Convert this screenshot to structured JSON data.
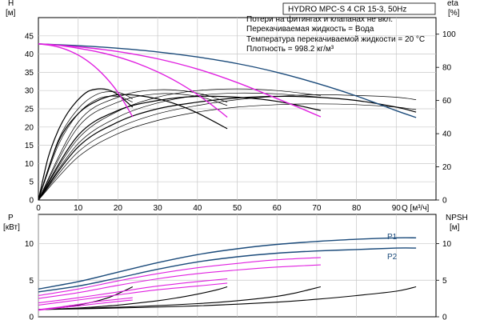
{
  "chart_data": [
    {
      "type": "line",
      "panel": "head-efficiency",
      "title": "HYDRO MPC-S 4 CR 15-3, 50Hz",
      "notes": [
        "Потери на фитингах и клапанах не вкл.",
        "Перекачиваемая жидкость = Вода",
        "Температура перекачиваемой жидкости = 20 °C",
        "Плотность = 998.2 кг/м³"
      ],
      "xlabel": "Q [м³/ч]",
      "xlim": [
        0,
        100
      ],
      "x_ticks": [
        "0",
        "10",
        "20",
        "30",
        "40",
        "50",
        "60",
        "70",
        "80",
        "90"
      ],
      "left_axis": {
        "label_line1": "H",
        "label_line2": "[м]",
        "ylim": [
          0,
          50
        ],
        "ticks": [
          "0",
          "5",
          "10",
          "15",
          "20",
          "25",
          "30",
          "35",
          "40",
          "45"
        ]
      },
      "right_axis": {
        "label_line1": "eta",
        "label_line2": "[%]",
        "ylim": [
          0,
          110
        ],
        "ticks": [
          "0",
          "20",
          "40",
          "60",
          "80",
          "100"
        ]
      },
      "grid": true,
      "head_curves": [
        {
          "color": "#1a4a7a",
          "x": [
            0,
            10,
            20,
            30,
            40,
            50,
            60,
            70,
            80,
            90,
            95
          ],
          "y": [
            42.8,
            42.3,
            41.6,
            40.6,
            39.2,
            37.4,
            35.0,
            32.0,
            28.5,
            24.5,
            22.6
          ]
        },
        {
          "color": "#e020e0",
          "x": [
            0,
            10,
            20,
            30,
            40,
            50,
            60,
            65,
            71
          ],
          "y": [
            42.8,
            42.0,
            40.7,
            38.7,
            35.9,
            32.2,
            27.8,
            25.6,
            22.8
          ]
        },
        {
          "color": "#e020e0",
          "x": [
            0,
            5,
            10,
            15,
            20,
            25,
            30,
            35,
            40,
            45,
            47.5
          ],
          "y": [
            42.8,
            42.4,
            41.6,
            40.6,
            39.2,
            37.4,
            35.1,
            32.3,
            28.9,
            24.9,
            22.7
          ]
        },
        {
          "color": "#e020e0",
          "x": [
            0,
            4,
            8,
            12,
            16,
            20,
            23.7
          ],
          "y": [
            42.8,
            42.2,
            40.8,
            38.4,
            34.7,
            29.5,
            22.8
          ]
        }
      ],
      "efficiency_curves": [
        {
          "color": "#000000",
          "width": 1.2,
          "x": [
            0,
            10,
            20,
            30,
            40,
            50,
            60,
            70,
            80,
            90,
            95
          ],
          "y": [
            0,
            32,
            47,
            55,
            59,
            61.5,
            62.5,
            62,
            60,
            56,
            53
          ]
        },
        {
          "color": "#000000",
          "width": 1.2,
          "x": [
            0,
            10,
            20,
            30,
            40,
            50,
            60,
            71
          ],
          "y": [
            0,
            39,
            54,
            60,
            62.5,
            62,
            59.5,
            54
          ]
        },
        {
          "color": "#000000",
          "width": 1.2,
          "x": [
            0,
            5,
            10,
            15,
            20,
            25,
            30,
            35,
            40,
            47.5
          ],
          "y": [
            0,
            35,
            52,
            60,
            63.5,
            63,
            61,
            57.5,
            52.5,
            43
          ]
        },
        {
          "color": "#000000",
          "width": 1.2,
          "x": [
            0,
            2.5,
            5,
            7.5,
            10,
            12.5,
            15,
            17.5,
            20,
            23.7
          ],
          "y": [
            0,
            26,
            42,
            53,
            60.5,
            65.5,
            67,
            66.5,
            63.5,
            56
          ]
        },
        {
          "color": "#000000",
          "width": 0.7,
          "x": [
            0,
            10,
            20,
            30,
            40,
            50,
            60,
            70,
            80,
            90,
            95
          ],
          "y": [
            0,
            26,
            40,
            48,
            53,
            56,
            57.5,
            58,
            57.5,
            56,
            54.5
          ]
        },
        {
          "color": "#000000",
          "width": 0.7,
          "x": [
            0,
            10,
            20,
            30,
            40,
            50,
            60,
            70,
            80,
            90,
            95
          ],
          "y": [
            0,
            29,
            43.5,
            52,
            57,
            60.5,
            62.5,
            63.5,
            63,
            62,
            60.5
          ]
        },
        {
          "color": "#000000",
          "width": 0.7,
          "x": [
            0,
            10,
            20,
            30,
            40,
            50,
            60,
            71
          ],
          "y": [
            0,
            34,
            50,
            58.5,
            63,
            64.5,
            64,
            62
          ]
        },
        {
          "color": "#000000",
          "width": 0.7,
          "x": [
            0,
            10,
            20,
            30,
            40,
            50,
            60,
            71
          ],
          "y": [
            0,
            37,
            53.5,
            62,
            66,
            67,
            66,
            63
          ]
        },
        {
          "color": "#000000",
          "width": 0.7,
          "x": [
            0,
            10,
            20,
            30,
            40,
            47.5
          ],
          "y": [
            0,
            47,
            62,
            66.5,
            64.5,
            59
          ]
        },
        {
          "color": "#000000",
          "width": 0.7,
          "x": [
            0,
            10,
            20,
            30,
            40,
            47.5
          ],
          "y": [
            0,
            44,
            59,
            64,
            62.5,
            57
          ]
        },
        {
          "color": "#000000",
          "width": 0.7,
          "x": [
            0,
            5,
            10,
            15,
            20,
            23.7
          ],
          "y": [
            0,
            36,
            55,
            64,
            65,
            61
          ]
        },
        {
          "color": "#000000",
          "width": 0.7,
          "x": [
            0,
            5,
            10,
            15,
            20,
            23.7
          ],
          "y": [
            0,
            33,
            52,
            61,
            62.5,
            59
          ]
        }
      ]
    },
    {
      "type": "line",
      "panel": "power-npsh",
      "xlim": [
        0,
        100
      ],
      "left_axis": {
        "label_line1": "P",
        "label_line2": "[кВт]",
        "ylim": [
          0,
          14
        ],
        "ticks": [
          "0",
          "5",
          "10"
        ]
      },
      "right_axis": {
        "label_line1": "NPSH",
        "label_line2": "[м]",
        "ylim": [
          0,
          14
        ],
        "ticks": [
          "0",
          "5",
          "10"
        ]
      },
      "grid": true,
      "power_curves": [
        {
          "name": "P1",
          "color": "#1a4a7a",
          "x": [
            0,
            10,
            20,
            30,
            40,
            50,
            60,
            70,
            80,
            90,
            95
          ],
          "y": [
            3.8,
            4.8,
            6.1,
            7.4,
            8.5,
            9.3,
            9.9,
            10.3,
            10.6,
            10.8,
            10.8
          ]
        },
        {
          "name": "P2",
          "color": "#1a4a7a",
          "x": [
            0,
            10,
            20,
            30,
            40,
            50,
            60,
            70,
            80,
            90,
            95
          ],
          "y": [
            3.4,
            4.2,
            5.3,
            6.5,
            7.5,
            8.2,
            8.7,
            9.0,
            9.2,
            9.4,
            9.4
          ]
        },
        {
          "color": "#e020e0",
          "x": [
            0,
            10,
            20,
            30,
            40,
            50,
            60,
            71
          ],
          "y": [
            2.9,
            3.8,
            4.9,
            5.9,
            6.7,
            7.3,
            7.8,
            8.1
          ]
        },
        {
          "color": "#e020e0",
          "x": [
            0,
            10,
            20,
            30,
            40,
            50,
            60,
            71
          ],
          "y": [
            2.5,
            3.3,
            4.3,
            5.2,
            5.9,
            6.4,
            6.8,
            7.1
          ]
        },
        {
          "color": "#e020e0",
          "x": [
            0,
            10,
            20,
            30,
            40,
            47.5
          ],
          "y": [
            1.9,
            2.6,
            3.4,
            4.2,
            4.8,
            5.2
          ]
        },
        {
          "color": "#e020e0",
          "x": [
            0,
            10,
            20,
            30,
            40,
            47.5
          ],
          "y": [
            1.6,
            2.3,
            3.0,
            3.7,
            4.2,
            4.6
          ]
        },
        {
          "color": "#e020e0",
          "x": [
            0,
            5,
            10,
            15,
            20,
            23.7
          ],
          "y": [
            1.0,
            1.3,
            1.7,
            2.1,
            2.4,
            2.6
          ]
        },
        {
          "color": "#e020e0",
          "x": [
            0,
            5,
            10,
            15,
            20,
            23.7
          ],
          "y": [
            0.9,
            1.2,
            1.5,
            1.8,
            2.1,
            2.3
          ]
        }
      ],
      "npsh_curves": [
        {
          "color": "#000000",
          "x": [
            0,
            20,
            40,
            60,
            70,
            80,
            90,
            95
          ],
          "y": [
            1.0,
            1.2,
            1.5,
            2.0,
            2.4,
            2.9,
            3.5,
            4.1
          ]
        },
        {
          "color": "#000000",
          "x": [
            0,
            20,
            40,
            50,
            60,
            65,
            71
          ],
          "y": [
            1.0,
            1.3,
            1.8,
            2.2,
            2.8,
            3.3,
            4.1
          ]
        },
        {
          "color": "#000000",
          "x": [
            0,
            10,
            20,
            30,
            35,
            40,
            45,
            47.5
          ],
          "y": [
            1.0,
            1.2,
            1.6,
            2.2,
            2.6,
            3.1,
            3.7,
            4.1
          ]
        },
        {
          "color": "#000000",
          "x": [
            0,
            5,
            10,
            15,
            18,
            21,
            23.7
          ],
          "y": [
            1.0,
            1.2,
            1.6,
            2.2,
            2.7,
            3.4,
            4.1
          ]
        }
      ],
      "series_labels": [
        "P1",
        "P2"
      ]
    }
  ]
}
